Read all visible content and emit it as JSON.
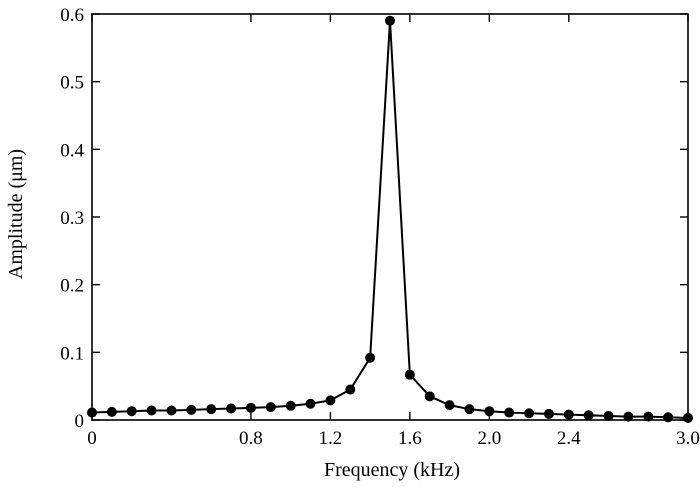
{
  "chart_data": {
    "type": "line",
    "title": "",
    "xlabel": "Frequency (kHz)",
    "ylabel": "Amplitude (μm)",
    "xlim": [
      0,
      3.0
    ],
    "ylim": [
      0,
      0.6
    ],
    "x_ticks": [
      0,
      0.8,
      1.2,
      1.6,
      2.0,
      2.4,
      3.0
    ],
    "x_tick_labels": [
      "0",
      "0.8",
      "1.2",
      "1.6",
      "2.0",
      "2.4",
      "3.0"
    ],
    "y_ticks": [
      0,
      0.1,
      0.2,
      0.3,
      0.4,
      0.5,
      0.6
    ],
    "y_tick_labels": [
      "0",
      "0.1",
      "0.2",
      "0.3",
      "0.4",
      "0.5",
      "0.6"
    ],
    "grid": false,
    "legend": "none",
    "marker": "filled-circle",
    "line_color": "#000000",
    "series": [
      {
        "x": [
          0.0,
          0.1,
          0.2,
          0.3,
          0.4,
          0.5,
          0.6,
          0.7,
          0.8,
          0.9,
          1.0,
          1.1,
          1.2,
          1.3,
          1.4,
          1.5,
          1.6,
          1.7,
          1.8,
          1.9,
          2.0,
          2.1,
          2.2,
          2.3,
          2.4,
          2.5,
          2.6,
          2.7,
          2.8,
          2.9,
          3.0
        ],
        "y": [
          0.011,
          0.012,
          0.013,
          0.014,
          0.014,
          0.015,
          0.016,
          0.017,
          0.018,
          0.019,
          0.021,
          0.024,
          0.029,
          0.045,
          0.092,
          0.59,
          0.067,
          0.035,
          0.022,
          0.016,
          0.013,
          0.011,
          0.01,
          0.009,
          0.008,
          0.007,
          0.006,
          0.005,
          0.005,
          0.004,
          0.003
        ]
      }
    ]
  }
}
